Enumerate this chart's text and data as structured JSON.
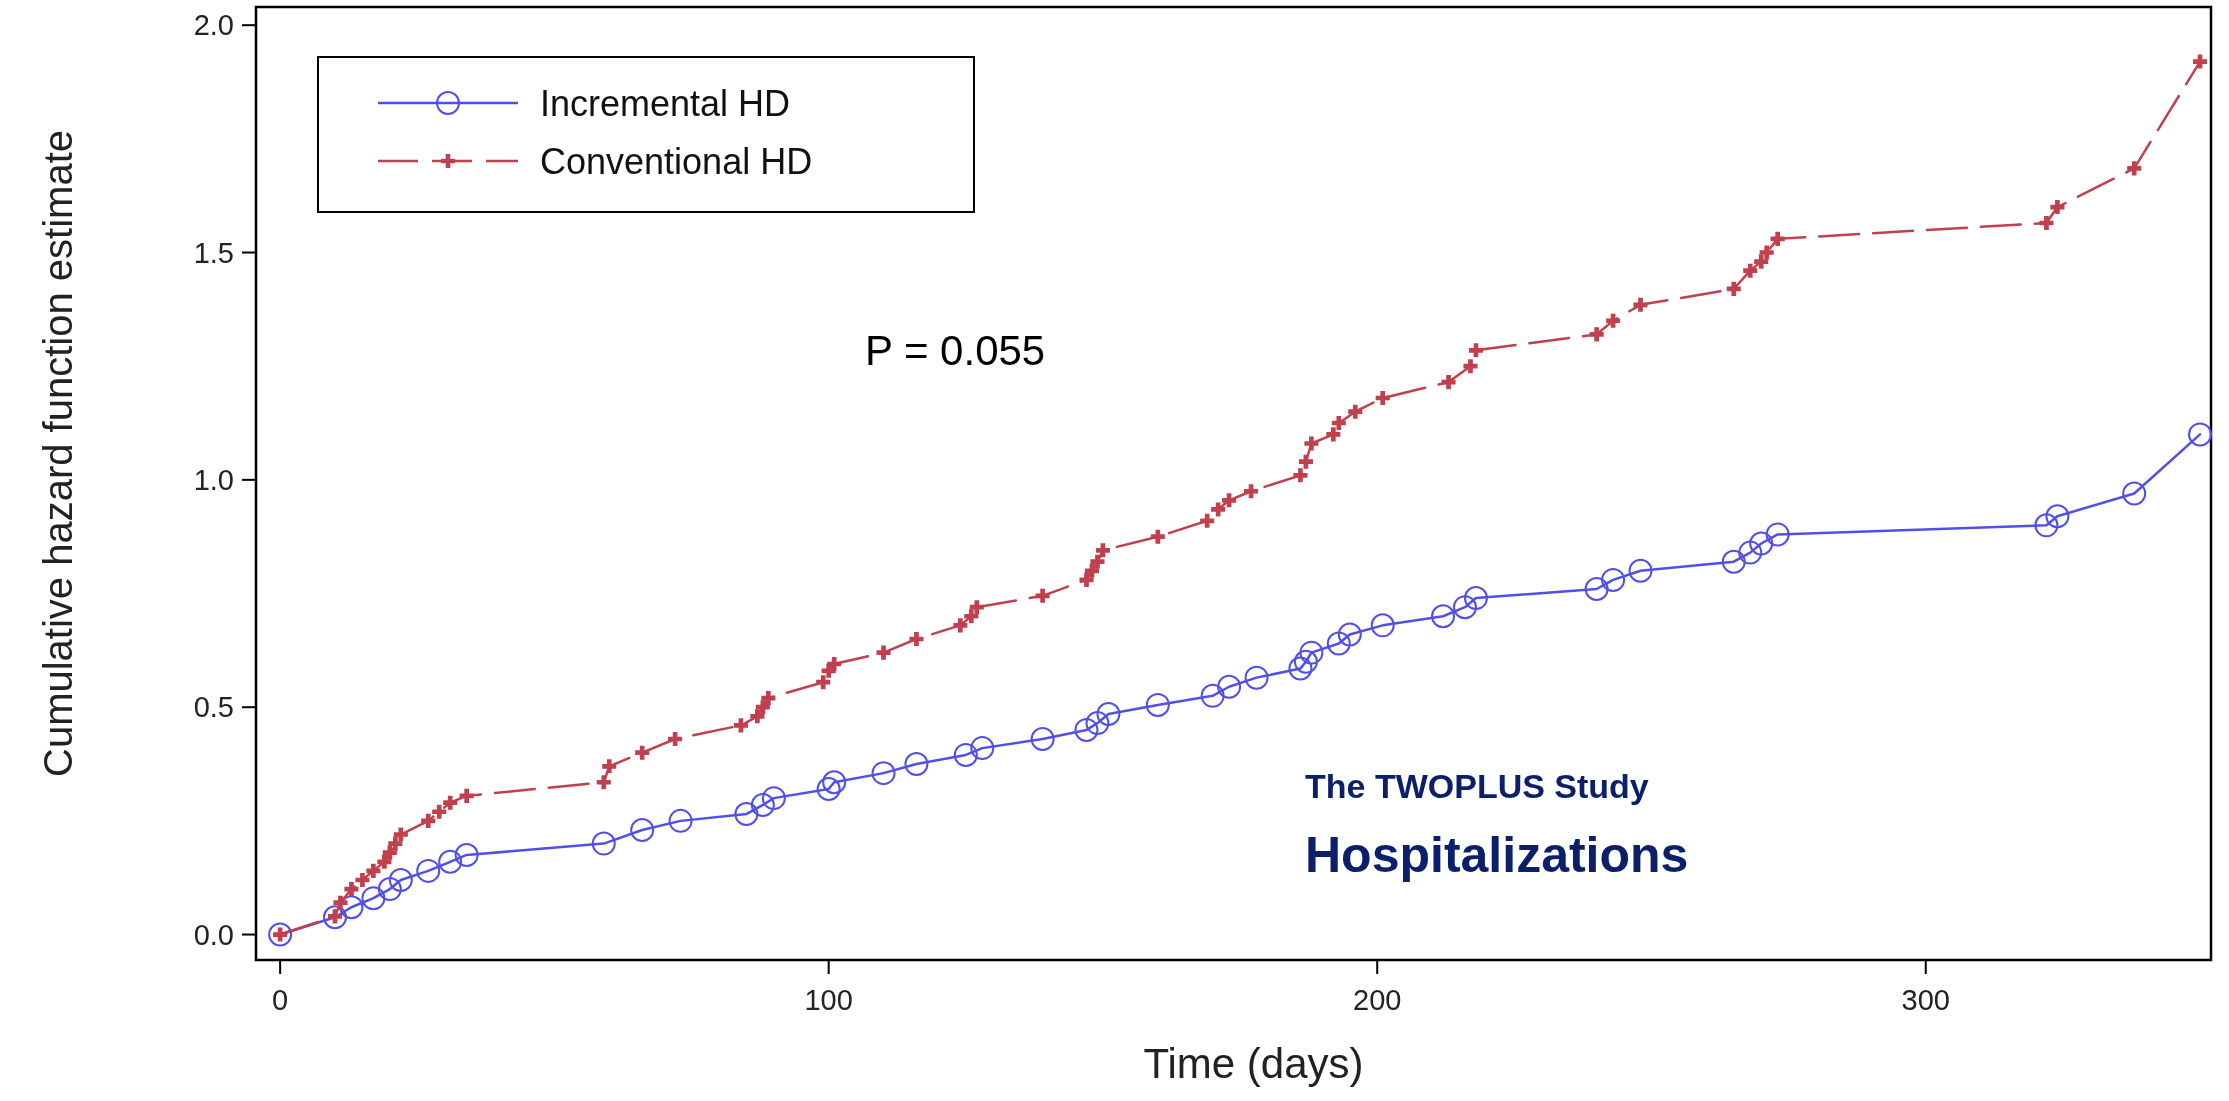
{
  "chart_data": {
    "type": "line",
    "xlabel": "Time (days)",
    "ylabel": "Cumulative hazard function estimate",
    "xlim": [
      -4.4,
      352
    ],
    "ylim": [
      -0.056,
      2.04
    ],
    "xticks": [
      0,
      100,
      200,
      300
    ],
    "yticks": [
      {
        "value": 0,
        "label": "0.0"
      },
      {
        "value": 0.5,
        "label": "0.5"
      },
      {
        "value": 1,
        "label": "1.0"
      },
      {
        "value": 1.5,
        "label": "1.5"
      },
      {
        "value": 2,
        "label": "2.0"
      }
    ],
    "grid": false,
    "legend": "top left",
    "annotations": [
      "P = 0.055",
      "The TWOPLUS Study",
      "Hospitalizations"
    ],
    "series": [
      {
        "name": "Incremental HD",
        "color": "#5050e8",
        "marker": "circle",
        "line_style": "solid",
        "x": [
          0,
          10,
          13,
          17,
          20,
          22,
          27,
          31,
          34,
          59,
          66,
          73,
          85,
          88,
          90,
          100,
          101,
          110,
          116,
          125,
          128,
          139,
          147,
          149,
          151,
          160,
          170,
          173,
          178,
          186,
          187,
          188,
          193,
          195,
          201,
          212,
          216,
          218,
          240,
          243,
          248,
          265,
          268,
          270,
          273,
          322,
          324,
          338,
          350
        ],
        "values": [
          0,
          0.038,
          0.06,
          0.08,
          0.1,
          0.12,
          0.14,
          0.16,
          0.175,
          0.2,
          0.23,
          0.25,
          0.265,
          0.285,
          0.3,
          0.32,
          0.335,
          0.355,
          0.375,
          0.395,
          0.41,
          0.43,
          0.45,
          0.465,
          0.485,
          0.505,
          0.525,
          0.545,
          0.565,
          0.585,
          0.6,
          0.62,
          0.64,
          0.66,
          0.68,
          0.7,
          0.72,
          0.74,
          0.76,
          0.78,
          0.8,
          0.82,
          0.84,
          0.86,
          0.88,
          0.9,
          0.92,
          0.97,
          1.1
        ]
      },
      {
        "name": "Conventional HD",
        "color": "#c0404e",
        "marker": "cross",
        "line_style": "dashed",
        "x": [
          0,
          10,
          11,
          13,
          15,
          17,
          19,
          20,
          21,
          22,
          27,
          29,
          31,
          34,
          59,
          60,
          66,
          72,
          84,
          87,
          88,
          89,
          99,
          100,
          101,
          110,
          116,
          124,
          126,
          127,
          139,
          147,
          148,
          149,
          150,
          160,
          169,
          171,
          173,
          177,
          186,
          187,
          188,
          192,
          193,
          196,
          201,
          213,
          217,
          218,
          240,
          243,
          248,
          265,
          268,
          270,
          271,
          273,
          322,
          324,
          338,
          350
        ],
        "values": [
          0,
          0.04,
          0.07,
          0.1,
          0.12,
          0.14,
          0.16,
          0.18,
          0.2,
          0.22,
          0.25,
          0.27,
          0.29,
          0.305,
          0.335,
          0.37,
          0.4,
          0.43,
          0.46,
          0.48,
          0.5,
          0.52,
          0.555,
          0.58,
          0.595,
          0.62,
          0.65,
          0.68,
          0.7,
          0.72,
          0.745,
          0.78,
          0.8,
          0.82,
          0.845,
          0.875,
          0.91,
          0.935,
          0.955,
          0.975,
          1.01,
          1.04,
          1.08,
          1.1,
          1.125,
          1.15,
          1.18,
          1.215,
          1.25,
          1.285,
          1.32,
          1.35,
          1.385,
          1.42,
          1.46,
          1.48,
          1.5,
          1.53,
          1.565,
          1.6,
          1.685,
          1.92
        ]
      }
    ]
  }
}
